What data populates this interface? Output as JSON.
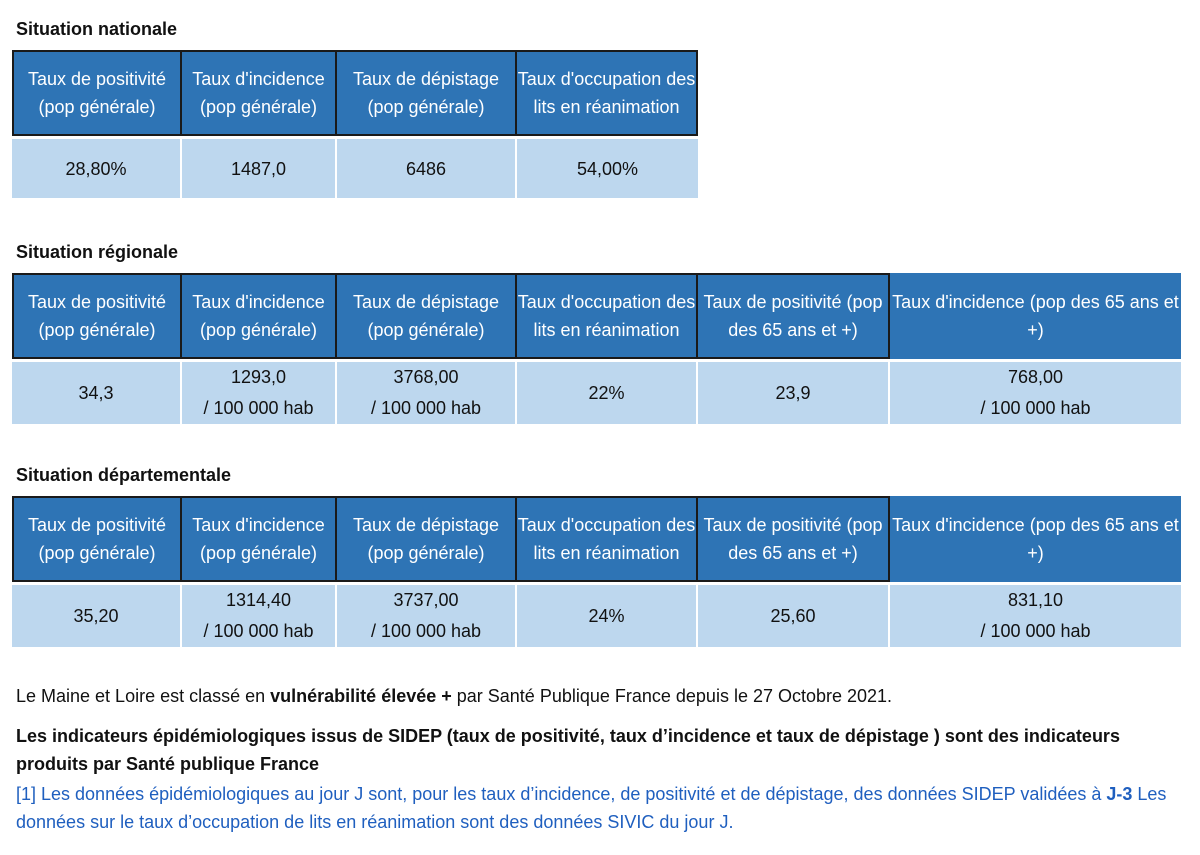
{
  "national": {
    "title": "Situation nationale",
    "headers": [
      "Taux de positivité (pop générale)",
      "Taux d'incidence (pop générale)",
      "Taux de dépistage (pop générale)",
      "Taux d'occupation des lits en réanimation"
    ],
    "values": [
      "28,80%",
      "1487,0",
      "6486",
      "54,00%"
    ]
  },
  "regional": {
    "title": "Situation régionale",
    "headers": [
      "Taux de positivité (pop générale)",
      "Taux d'incidence (pop générale)",
      "Taux de dépistage (pop générale)",
      "Taux d'occupation des lits en réanimation",
      "Taux de positivité (pop des 65 ans et +)",
      "Taux d'incidence (pop des 65 ans et +)"
    ],
    "values": [
      {
        "line1": "34,3",
        "line2": ""
      },
      {
        "line1": "1293,0",
        "line2": "/ 100 000 hab"
      },
      {
        "line1": "3768,00",
        "line2": "/ 100 000 hab"
      },
      {
        "line1": "22%",
        "line2": ""
      },
      {
        "line1": "23,9",
        "line2": ""
      },
      {
        "line1": "768,00",
        "line2": "/ 100 000 hab"
      }
    ]
  },
  "departemental": {
    "title": "Situation départementale",
    "headers": [
      "Taux de positivité (pop générale)",
      "Taux d'incidence (pop générale)",
      "Taux de dépistage (pop générale)",
      "Taux d'occupation des lits en réanimation",
      "Taux de positivité (pop des 65 ans et +)",
      "Taux d'incidence (pop des 65 ans et +)"
    ],
    "values": [
      {
        "line1": "35,20",
        "line2": ""
      },
      {
        "line1": "1314,40",
        "line2": "/ 100 000 hab"
      },
      {
        "line1": "3737,00",
        "line2": "/ 100 000 hab"
      },
      {
        "line1": "24%",
        "line2": ""
      },
      {
        "line1": "25,60",
        "line2": ""
      },
      {
        "line1": "831,10",
        "line2": "/ 100 000 hab"
      }
    ]
  },
  "notes": {
    "classification_prefix": "Le Maine et Loire est classé en ",
    "classification_bold": "vulnérabilité élevée +",
    "classification_suffix": " par Santé Publique France depuis le 27 Octobre 2021.",
    "sidep_bold": "Les indicateurs épidémiologiques issus de SIDEP (taux de positivité, taux d’incidence et taux de dépistage ) sont des indicateurs produits par Santé publique France",
    "footnote_part1": "[1] Les données épidémiologiques au jour J sont, pour les taux d’incidence, de positivité et de dépistage, des données SIDEP validées à ",
    "footnote_bold": "J-3",
    "footnote_part2": " Les données sur le taux d’occupation de lits en réanimation sont des données SIVIC du jour J."
  },
  "colors": {
    "header_bg": "#2e74b5",
    "value_bg": "#bdd7ee",
    "footnote_text": "#1f5fbf"
  }
}
